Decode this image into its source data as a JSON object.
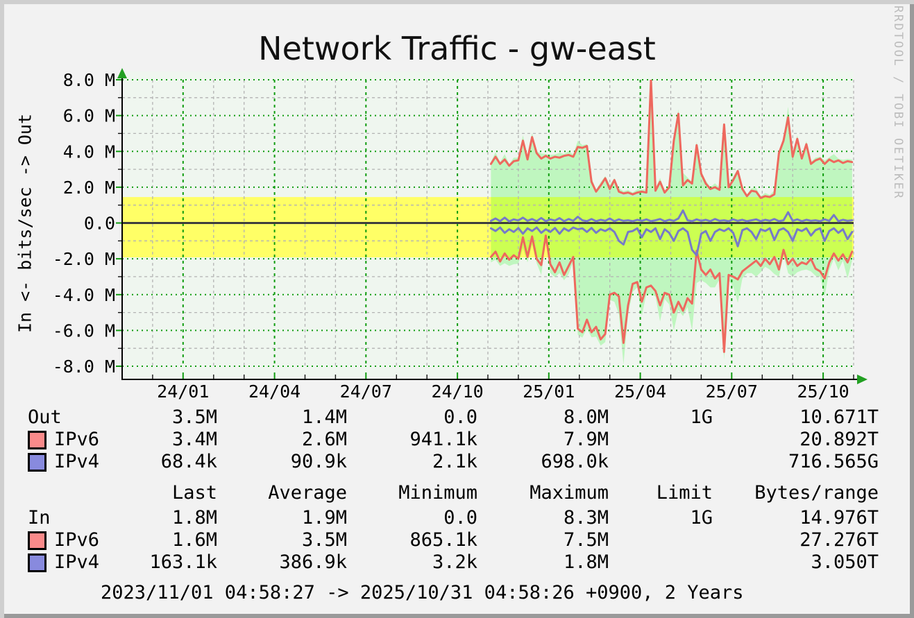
{
  "watermark": "RRDTOOL / TOBI OETIKER",
  "colors": {
    "canvas": "#f2f2f2",
    "plot_bg": "#eff6ef",
    "grid_major": "#109c10",
    "grid_minor": "#b3b3b3",
    "zero_line": "#3d3d3d",
    "axis": "#000000",
    "arrow": "#22a022",
    "yellow_band": "#ffff66",
    "area_green": "#ccffcc",
    "ipv6": "#ee685e",
    "ipv4": "#767ac9",
    "ipv6_swatch": "#fa8a8a",
    "ipv4_swatch": "#888ade",
    "watermark": "#bcbcbc",
    "bevel_light": "#cfcfcf",
    "bevel_dark": "#9a9a9a"
  },
  "chart_data": {
    "type": "line",
    "title": "Network Traffic - gw-east",
    "ylabel": "In <- bits/sec -> Out",
    "y_unit": "bits/sec (M = 1e6), Out positive / In negative",
    "ylim": [
      -8,
      8
    ],
    "x_range": [
      "2023/11/01",
      "2025/10/31"
    ],
    "x_unit": "months since 2023-11-01 (0..24)",
    "x_start": 12.1,
    "x_step": 0.15,
    "x_count": 80,
    "y_ticks": [
      {
        "v": 8,
        "label": "8.0 M"
      },
      {
        "v": 6,
        "label": "6.0 M"
      },
      {
        "v": 4,
        "label": "4.0 M"
      },
      {
        "v": 2,
        "label": "2.0 M"
      },
      {
        "v": 0,
        "label": "0.0"
      },
      {
        "v": -2,
        "label": "-2.0 M"
      },
      {
        "v": -4,
        "label": "-4.0 M"
      },
      {
        "v": -6,
        "label": "-6.0 M"
      },
      {
        "v": -8,
        "label": "-8.0 M"
      }
    ],
    "x_ticks": [
      {
        "m": 2,
        "label": "24/01"
      },
      {
        "m": 5,
        "label": "24/04"
      },
      {
        "m": 8,
        "label": "24/07"
      },
      {
        "m": 11,
        "label": "24/10"
      },
      {
        "m": 14,
        "label": "25/01"
      },
      {
        "m": 17,
        "label": "25/04"
      },
      {
        "m": 20,
        "label": "25/07"
      },
      {
        "m": 23,
        "label": "25/10"
      }
    ],
    "yellow_band": {
      "from": 1.45,
      "to": -1.92,
      "color_key": "yellow_band",
      "meaning": "Out avg 1.4M to In avg -1.9M"
    },
    "area": {
      "color_key": "area_green",
      "composition": "ipv6+ipv4 total per direction"
    },
    "series": [
      {
        "name": "Out IPv6",
        "color_key": "ipv6",
        "values": [
          3.3,
          3.7,
          3.3,
          3.55,
          3.2,
          3.45,
          3.5,
          4.6,
          3.55,
          4.8,
          3.9,
          3.6,
          3.75,
          3.6,
          3.7,
          3.65,
          3.75,
          3.8,
          3.7,
          4.25,
          4.2,
          4.3,
          2.3,
          1.75,
          2.1,
          2.5,
          1.9,
          2.4,
          1.75,
          1.65,
          1.7,
          1.6,
          1.7,
          1.75,
          1.7,
          8.0,
          1.8,
          2.3,
          1.7,
          2.0,
          4.6,
          6.1,
          2.1,
          2.4,
          2.2,
          4.35,
          2.75,
          2.2,
          1.9,
          2.0,
          1.85,
          5.5,
          2.0,
          2.4,
          2.9,
          1.9,
          1.5,
          1.8,
          1.75,
          1.4,
          1.5,
          1.45,
          1.6,
          3.9,
          4.6,
          5.9,
          3.7,
          4.7,
          3.6,
          4.4,
          3.3,
          3.5,
          3.6,
          3.3,
          3.55,
          3.4,
          3.5,
          3.35,
          3.45,
          3.4
        ]
      },
      {
        "name": "Out IPv4",
        "color_key": "ipv4",
        "values": [
          0.12,
          0.25,
          0.1,
          0.3,
          0.09,
          0.2,
          0.14,
          0.3,
          0.12,
          0.22,
          0.1,
          0.28,
          0.1,
          0.2,
          0.13,
          0.27,
          0.1,
          0.22,
          0.12,
          0.35,
          0.15,
          0.1,
          0.22,
          0.1,
          0.18,
          0.12,
          0.25,
          0.1,
          0.2,
          0.12,
          0.15,
          0.1,
          0.18,
          0.12,
          0.2,
          0.1,
          0.15,
          0.22,
          0.1,
          0.18,
          0.12,
          0.25,
          0.7,
          0.15,
          0.1,
          0.2,
          0.12,
          0.18,
          0.1,
          0.22,
          0.12,
          0.15,
          0.1,
          0.2,
          0.12,
          0.18,
          0.1,
          0.15,
          0.2,
          0.1,
          0.18,
          0.12,
          0.22,
          0.1,
          0.15,
          0.6,
          0.12,
          0.2,
          0.1,
          0.18,
          0.12,
          0.15,
          0.1,
          0.2,
          0.12,
          0.45,
          0.1,
          0.18,
          0.12,
          0.15
        ]
      },
      {
        "name": "In IPv6",
        "color_key": "ipv6",
        "values": [
          -1.9,
          -1.6,
          -2.15,
          -1.7,
          -2.05,
          -1.8,
          -2.0,
          -0.8,
          -1.9,
          -0.75,
          -2.0,
          -2.35,
          -0.7,
          -2.3,
          -2.75,
          -2.2,
          -2.9,
          -2.4,
          -1.9,
          -5.9,
          -6.1,
          -5.4,
          -6.1,
          -5.8,
          -6.5,
          -6.2,
          -4.0,
          -3.9,
          -4.1,
          -6.7,
          -4.6,
          -3.4,
          -3.3,
          -4.4,
          -3.6,
          -3.5,
          -3.8,
          -4.6,
          -3.9,
          -4.0,
          -5.0,
          -4.4,
          -4.9,
          -4.2,
          -4.5,
          -1.55,
          -2.6,
          -2.9,
          -2.6,
          -3.1,
          -2.8,
          -7.2,
          -2.9,
          -3.0,
          -3.15,
          -2.7,
          -2.5,
          -2.3,
          -2.1,
          -2.4,
          -2.0,
          -2.3,
          -1.9,
          -2.6,
          -1.5,
          -2.3,
          -2.0,
          -2.4,
          -2.2,
          -2.3,
          -2.0,
          -2.55,
          -2.7,
          -3.1,
          -2.2,
          -1.7,
          -2.1,
          -1.75,
          -2.2,
          -1.6
        ]
      },
      {
        "name": "In IPv4",
        "color_key": "ipv4",
        "values": [
          -0.3,
          -0.45,
          -0.25,
          -0.55,
          -0.35,
          -0.5,
          -0.28,
          -0.6,
          -0.3,
          -0.45,
          -0.25,
          -0.55,
          -0.35,
          -0.5,
          -0.28,
          -0.6,
          -0.3,
          -0.45,
          -0.25,
          -0.35,
          -0.3,
          -0.5,
          -0.28,
          -0.55,
          -0.35,
          -0.45,
          -0.3,
          -0.5,
          -1.0,
          -1.2,
          -0.5,
          -0.45,
          -0.3,
          -0.8,
          -0.35,
          -0.5,
          -0.3,
          -0.9,
          -0.35,
          -0.55,
          -1.0,
          -0.45,
          -0.3,
          -0.5,
          -1.5,
          -1.8,
          -0.6,
          -0.45,
          -1.0,
          -0.5,
          -0.35,
          -0.45,
          -0.3,
          -0.55,
          -1.3,
          -0.4,
          -0.3,
          -0.5,
          -0.9,
          -0.35,
          -0.45,
          -0.3,
          -0.95,
          -0.4,
          -0.3,
          -0.5,
          -1.0,
          -0.35,
          -0.45,
          -0.3,
          -0.7,
          -0.4,
          -0.3,
          -1.0,
          -0.45,
          -0.3,
          -0.55,
          -0.35,
          -0.9,
          -0.5
        ]
      }
    ]
  },
  "legend": {
    "header": {
      "cols": [
        "Last",
        "Average",
        "Minimum",
        "Maximum",
        "Limit",
        "Bytes/range"
      ]
    },
    "rows": [
      {
        "swatch": null,
        "label": "Out",
        "values": [
          "3.5M",
          "1.4M",
          "0.0",
          "8.0M",
          "1G",
          "10.671T"
        ]
      },
      {
        "swatch": "ipv6",
        "label": "IPv6",
        "values": [
          "3.4M",
          "2.6M",
          "941.1k",
          "7.9M",
          "",
          "20.892T"
        ]
      },
      {
        "swatch": "ipv4",
        "label": "IPv4",
        "values": [
          "68.4k",
          "90.9k",
          "2.1k",
          "698.0k",
          "",
          "716.565G"
        ]
      },
      {
        "swatch": null,
        "label": "In",
        "values": [
          "1.8M",
          "1.9M",
          "0.0",
          "8.3M",
          "1G",
          "14.976T"
        ]
      },
      {
        "swatch": "ipv6",
        "label": "IPv6",
        "values": [
          "1.6M",
          "3.5M",
          "865.1k",
          "7.5M",
          "",
          "27.276T"
        ]
      },
      {
        "swatch": "ipv4",
        "label": "IPv4",
        "values": [
          "163.1k",
          "386.9k",
          "3.2k",
          "1.8M",
          "",
          "3.050T"
        ]
      }
    ],
    "footer": "2023/11/01 04:58:27 -> 2025/10/31 04:58:26 +0900, 2 Years"
  }
}
